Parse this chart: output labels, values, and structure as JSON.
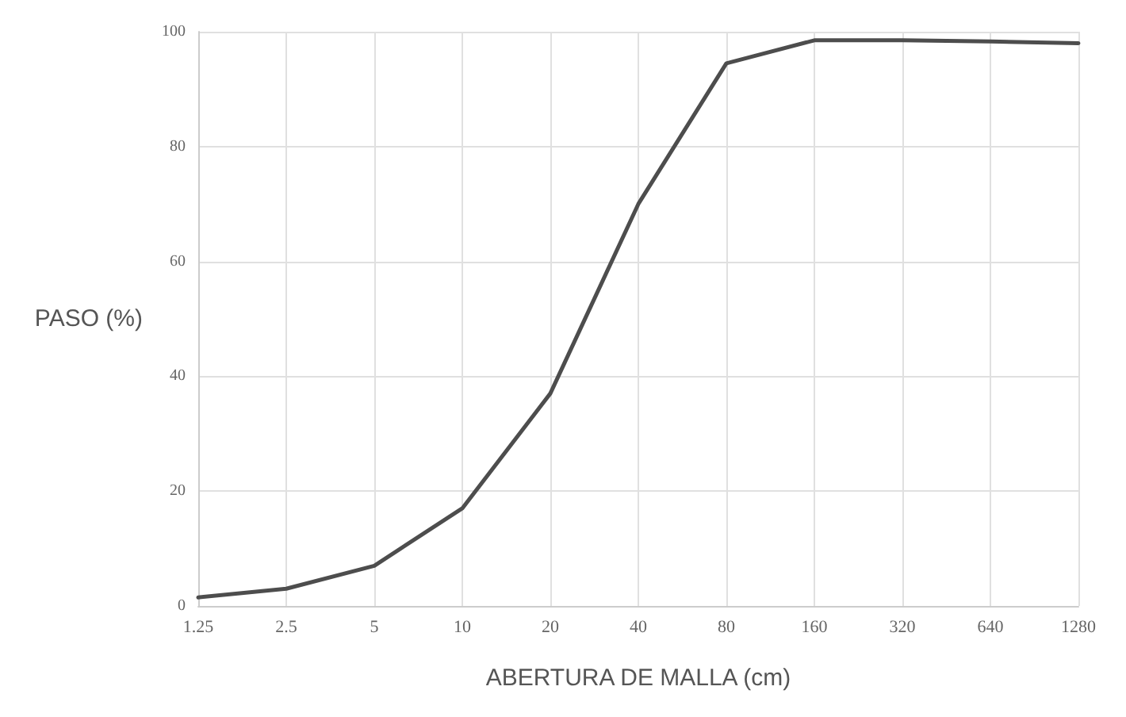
{
  "chart_data": {
    "type": "line",
    "xlabel": "ABERTURA DE MALLA (cm)",
    "ylabel": "PASO (%)",
    "categories": [
      "1.25",
      "2.5",
      "5",
      "10",
      "20",
      "40",
      "80",
      "160",
      "320",
      "640",
      "1280"
    ],
    "series": [
      {
        "color": "#4d4d4d",
        "values": [
          1.5,
          3,
          7,
          17,
          37,
          70,
          94.5,
          98.5,
          98.5,
          98.3,
          98
        ]
      }
    ],
    "ylim": [
      0,
      100
    ],
    "yticks": [
      0,
      20,
      40,
      60,
      80,
      100
    ],
    "grid": true,
    "marker": "none",
    "line_style": "solid"
  }
}
